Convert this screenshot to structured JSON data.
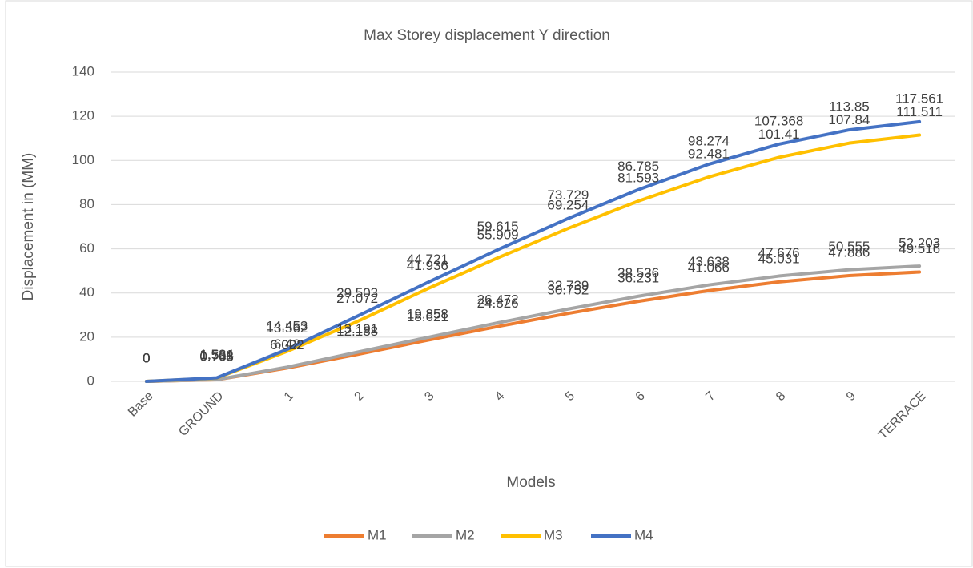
{
  "chart_data": {
    "type": "line",
    "title": "Max Storey displacement Y direction",
    "x_label": "Models",
    "y_label": "Displacement in (MM)",
    "categories": [
      "Base",
      "GROUND",
      "1",
      "2",
      "3",
      "4",
      "5",
      "6",
      "7",
      "8",
      "9",
      "TERRACE"
    ],
    "series": [
      {
        "name": "M1",
        "color": "#ed7d31",
        "values": [
          0,
          0.705,
          6.022,
          12.188,
          18.621,
          24.826,
          30.752,
          36.231,
          41.066,
          45.031,
          47.886,
          49.516
        ]
      },
      {
        "name": "M2",
        "color": "#a5a5a5",
        "values": [
          0,
          0.768,
          6.42,
          13.191,
          19.858,
          26.472,
          32.739,
          38.536,
          43.638,
          47.676,
          50.555,
          52.203
        ]
      },
      {
        "name": "M3",
        "color": "#ffc000",
        "values": [
          0,
          1.511,
          13.562,
          27.072,
          41.936,
          55.909,
          69.254,
          81.593,
          92.481,
          101.41,
          107.84,
          111.511
        ]
      },
      {
        "name": "M4",
        "color": "#4472c4",
        "values": [
          0,
          1.584,
          14.453,
          29.503,
          44.721,
          59.615,
          73.729,
          86.785,
          98.274,
          107.368,
          113.85,
          117.561
        ]
      }
    ],
    "ylim": [
      0,
      140
    ],
    "yticks": [
      0,
      20,
      40,
      60,
      80,
      100,
      120,
      140
    ],
    "grid": true,
    "legend": "bottom"
  }
}
